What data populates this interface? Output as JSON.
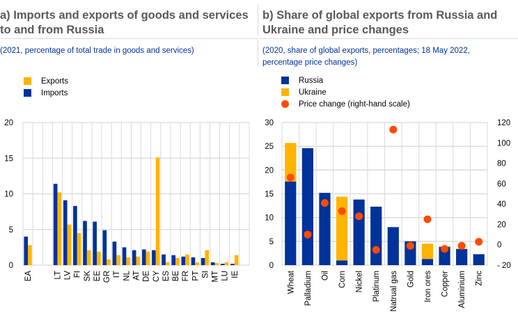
{
  "colors": {
    "russia_imports": "#003299",
    "ukraine_exports": "#ffb400",
    "price_dot": "#ff4b00",
    "grid": "#d9d9d9",
    "title": "#595959",
    "subtitle": "#003299"
  },
  "panel_a": {
    "title_line1": "a) Imports and exports of goods and services",
    "title_line2": "to and from Russia",
    "subtitle": "(2021, percentage of total trade in goods and services)",
    "legend": [
      {
        "label": "Exports",
        "color": "#ffb400"
      },
      {
        "label": "Imports",
        "color": "#003299"
      }
    ]
  },
  "panel_b": {
    "title_line1": "b) Share of global exports from Russia and",
    "title_line2": "Ukraine and price changes",
    "subtitle_line1": "(2020, share of global exports, percentages; 18 May 2022,",
    "subtitle_line2": "percentage price changes)",
    "legend": [
      {
        "label": "Russia",
        "color": "#003299"
      },
      {
        "label": "Ukraine",
        "color": "#ffb400"
      },
      {
        "label": "Price change (right-hand scale)",
        "color": "#ff4b00"
      }
    ]
  },
  "chart_data": [
    {
      "type": "bar",
      "title": "a) Imports and exports of goods and services to and from Russia",
      "subtitle": "(2021, percentage of total trade in goods and services)",
      "categories": [
        "EA",
        "",
        "LT",
        "LV",
        "FI",
        "SK",
        "EE",
        "GR",
        "IT",
        "NL",
        "AT",
        "DE",
        "CY",
        "ES",
        "BE",
        "FR",
        "PT",
        "SI",
        "MT",
        "LU",
        "IE"
      ],
      "series": [
        {
          "name": "Imports",
          "values": [
            4.0,
            null,
            11.4,
            9.1,
            8.3,
            6.2,
            6.1,
            4.9,
            3.3,
            2.5,
            2.1,
            2.2,
            2.1,
            1.5,
            1.4,
            1.2,
            1.1,
            1.0,
            0.4,
            0.2,
            0.2
          ]
        },
        {
          "name": "Exports",
          "values": [
            2.8,
            null,
            10.2,
            5.7,
            4.5,
            2.1,
            1.9,
            0.8,
            1.4,
            1.1,
            1.2,
            1.9,
            15.1,
            0.4,
            1.0,
            1.5,
            0.4,
            2.1,
            0.3,
            0.4,
            1.4
          ]
        }
      ],
      "ylim": [
        0,
        20
      ],
      "yticks": [
        0,
        5,
        10,
        15,
        20
      ],
      "xlabel": "",
      "ylabel": "",
      "grid": true,
      "legend_position": "top-left"
    },
    {
      "type": "bar",
      "stacked": true,
      "title": "b) Share of global exports from Russia and Ukraine and price changes",
      "subtitle": "(2020, share of global exports, percentages; 18 May 2022, percentage price changes)",
      "categories": [
        "Wheat",
        "Palladium",
        "Oil",
        "Corn",
        "Nickel",
        "Platinum",
        "Natrual gas",
        "Gold",
        "Iron ores",
        "Copper",
        "Aluminium",
        "Zinc"
      ],
      "series": [
        {
          "name": "Russia",
          "axis": "left",
          "values": [
            17.6,
            24.6,
            15.2,
            1.0,
            13.8,
            12.3,
            8.0,
            5.0,
            1.3,
            3.8,
            3.4,
            2.3
          ]
        },
        {
          "name": "Ukraine",
          "axis": "left",
          "values": [
            8.1,
            0,
            0,
            13.4,
            0,
            0,
            0,
            0,
            3.2,
            0.2,
            0.1,
            0
          ]
        },
        {
          "name": "Price change (right-hand scale)",
          "type": "scatter",
          "axis": "right",
          "values": [
            66,
            10,
            41,
            33,
            28,
            -5,
            113,
            -1,
            25,
            -4,
            -1,
            3
          ]
        }
      ],
      "ylim": [
        0,
        30
      ],
      "yticks": [
        0,
        5,
        10,
        15,
        20,
        25,
        30
      ],
      "y2lim": [
        -20,
        120
      ],
      "y2ticks": [
        -20,
        0,
        20,
        40,
        60,
        80,
        100,
        120
      ],
      "grid": true,
      "legend_position": "top-left"
    }
  ]
}
